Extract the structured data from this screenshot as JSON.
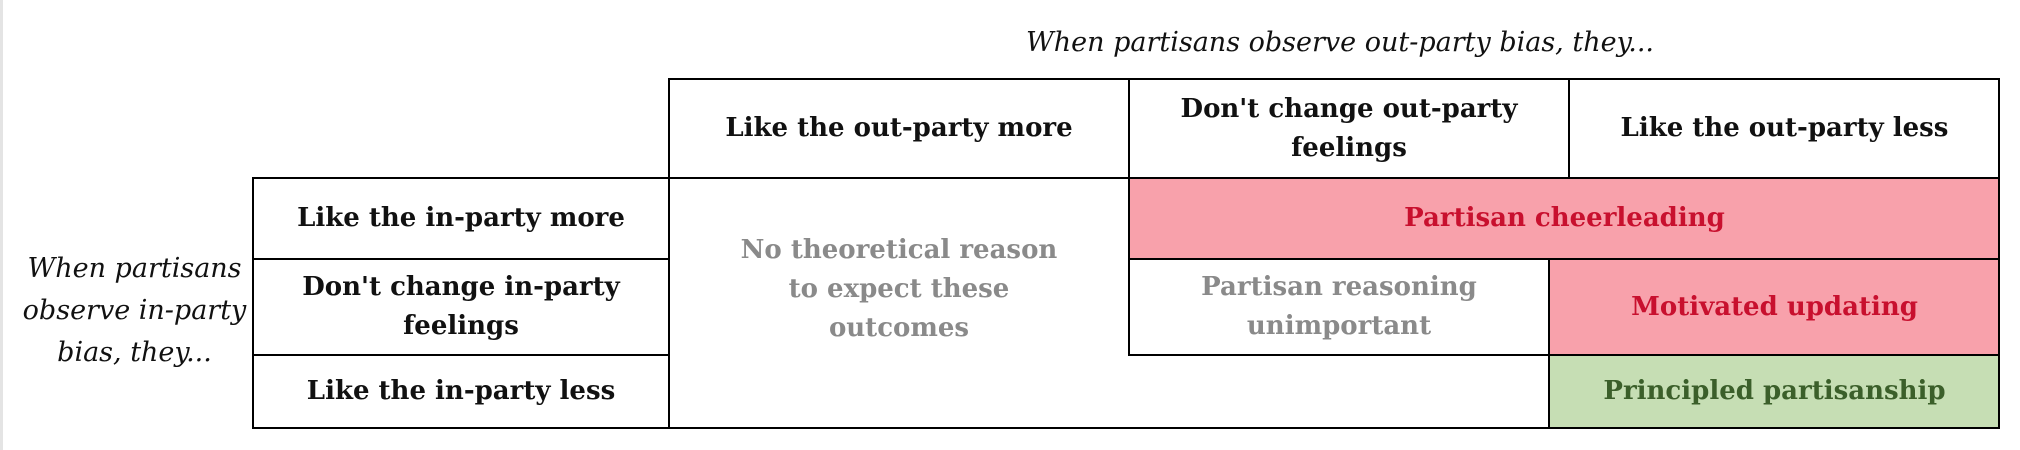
{
  "top_caption": "When partisans observe out-party bias, they...",
  "left_caption": "When partisans observe in-party bias, they...",
  "columns": [
    "Like the out-party more",
    "Don't change out-party feelings",
    "Like the out-party less"
  ],
  "rows": [
    "Like the in-party more",
    "Don't change in-party feelings",
    "Like the in-party less"
  ],
  "regions": {
    "no_theory": "No theoretical reason to expect these outcomes",
    "cheerleading": "Partisan cheerleading",
    "unimportant": "Partisan reasoning unimportant",
    "motivated": "Motivated updating",
    "principled": "Principled partisanship"
  },
  "colors": {
    "red_fill": "#f8a1ab",
    "red_text": "#c8102e",
    "green_fill": "#c6deb4",
    "green_text": "#3b5f2a",
    "gray_text": "#8a8a8a"
  }
}
